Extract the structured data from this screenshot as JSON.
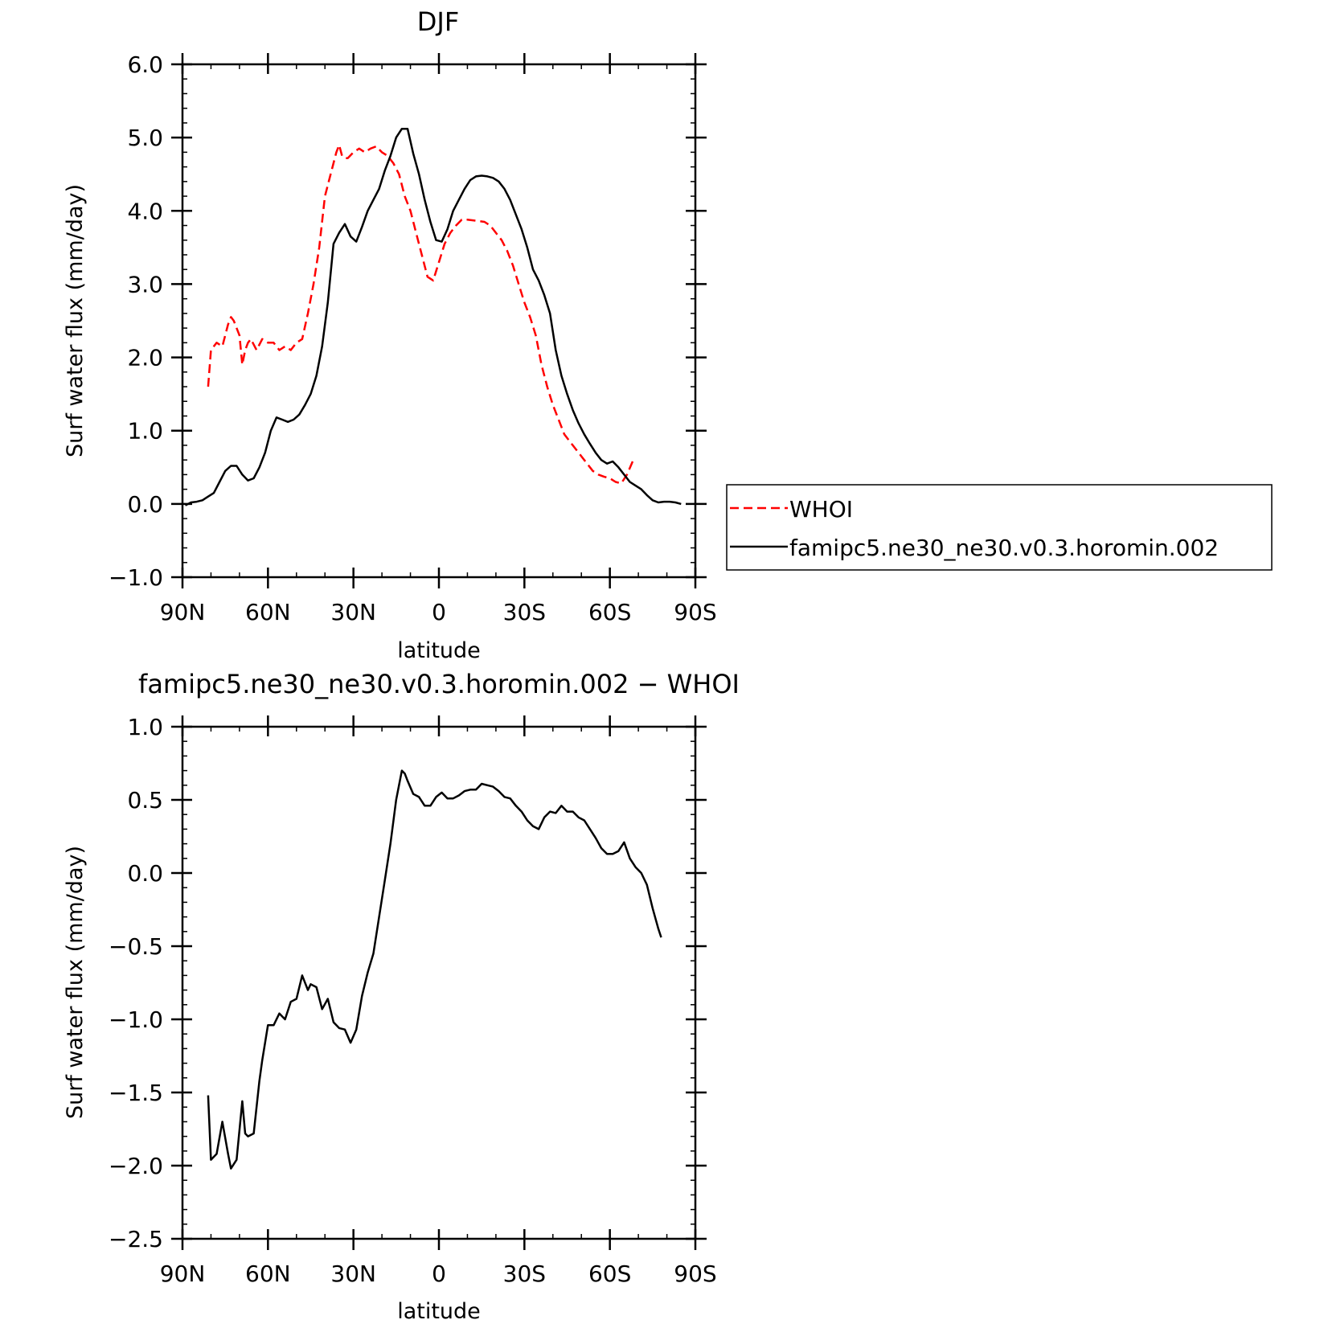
{
  "chart_data": [
    {
      "type": "line",
      "title": "DJF",
      "xlabel": "latitude",
      "ylabel": "Surf water flux (mm/day)",
      "xlim": [
        90,
        -90
      ],
      "ylim": [
        -1.0,
        6.0
      ],
      "x_ticks": [
        {
          "value": 90,
          "label": "90N"
        },
        {
          "value": 60,
          "label": "60N"
        },
        {
          "value": 30,
          "label": "30N"
        },
        {
          "value": 0,
          "label": "0"
        },
        {
          "value": -30,
          "label": "30S"
        },
        {
          "value": -60,
          "label": "60S"
        },
        {
          "value": -90,
          "label": "90S"
        }
      ],
      "y_ticks": [
        {
          "value": 6.0,
          "label": "6.0"
        },
        {
          "value": 5.0,
          "label": "5.0"
        },
        {
          "value": 4.0,
          "label": "4.0"
        },
        {
          "value": 3.0,
          "label": "3.0"
        },
        {
          "value": 2.0,
          "label": "2.0"
        },
        {
          "value": 1.0,
          "label": "1.0"
        },
        {
          "value": 0.0,
          "label": "0.0"
        },
        {
          "value": -1.0,
          "label": "−1.0"
        }
      ],
      "legend_position": "right",
      "series": [
        {
          "name": "WHOI",
          "color": "#ff0000",
          "style": "dashed",
          "x": [
            81,
            80,
            78,
            76,
            74,
            73,
            72,
            70,
            69,
            68,
            67,
            66,
            64,
            62,
            60,
            58,
            56,
            54,
            52,
            50,
            48,
            46,
            44,
            42,
            40,
            38,
            36,
            35,
            34,
            33,
            32,
            30,
            28,
            26,
            24,
            22,
            20,
            18,
            16,
            14,
            12,
            10,
            8,
            6,
            4,
            2,
            0,
            -2,
            -4,
            -6,
            -8,
            -10,
            -12,
            -14,
            -16,
            -18,
            -20,
            -22,
            -24,
            -26,
            -28,
            -30,
            -32,
            -34,
            -36,
            -38,
            -40,
            -42,
            -44,
            -46,
            -48,
            -50,
            -52,
            -54,
            -56,
            -58,
            -60,
            -62,
            -64,
            -66,
            -68,
            -70,
            -72,
            -74,
            -76,
            -78
          ],
          "y": [
            1.6,
            2.1,
            2.2,
            2.15,
            2.45,
            2.55,
            2.5,
            2.3,
            1.9,
            2.1,
            2.2,
            2.25,
            2.1,
            2.25,
            2.2,
            2.2,
            2.1,
            2.15,
            2.1,
            2.2,
            2.25,
            2.6,
            3.0,
            3.5,
            4.2,
            4.5,
            4.8,
            4.9,
            4.75,
            4.72,
            4.72,
            4.8,
            4.85,
            4.8,
            4.85,
            4.88,
            4.8,
            4.75,
            4.65,
            4.5,
            4.2,
            4.0,
            3.7,
            3.4,
            3.1,
            3.05,
            3.3,
            3.55,
            3.7,
            3.8,
            3.88,
            3.88,
            3.87,
            3.86,
            3.85,
            3.8,
            3.7,
            3.6,
            3.45,
            3.25,
            3.0,
            2.75,
            2.55,
            2.3,
            1.9,
            1.6,
            1.35,
            1.15,
            0.95,
            0.85,
            0.75,
            0.65,
            0.55,
            0.45,
            0.4,
            0.37,
            0.35,
            0.3,
            0.28,
            0.4,
            0.58,
            null,
            null,
            null,
            null,
            null
          ]
        },
        {
          "name": "famipc5.ne30_ne30.v0.3.horomin.002",
          "color": "#000000",
          "style": "solid",
          "x": [
            89,
            87,
            85,
            83,
            81,
            79,
            77,
            75,
            73,
            71,
            69,
            67,
            65,
            63,
            61,
            59,
            57,
            55,
            53,
            51,
            49,
            47,
            45,
            43,
            41,
            39,
            37,
            35,
            33,
            31,
            29,
            27,
            25,
            23,
            21,
            19,
            17,
            15,
            13,
            11,
            9,
            7,
            5,
            3,
            1,
            -1,
            -3,
            -5,
            -7,
            -9,
            -11,
            -13,
            -15,
            -17,
            -19,
            -21,
            -23,
            -25,
            -27,
            -29,
            -31,
            -33,
            -35,
            -37,
            -39,
            -41,
            -43,
            -45,
            -47,
            -49,
            -51,
            -53,
            -55,
            -57,
            -59,
            -61,
            -63,
            -65,
            -67,
            -69,
            -71,
            -73,
            -75,
            -77,
            -79,
            -81,
            -83,
            -85,
            -87,
            -89
          ],
          "y": [
            -0.02,
            0.02,
            0.03,
            0.05,
            0.1,
            0.15,
            0.3,
            0.45,
            0.52,
            0.52,
            0.4,
            0.32,
            0.35,
            0.5,
            0.7,
            1.0,
            1.18,
            1.15,
            1.12,
            1.15,
            1.22,
            1.35,
            1.5,
            1.75,
            2.15,
            2.75,
            3.55,
            3.7,
            3.82,
            3.65,
            3.58,
            3.78,
            4.0,
            4.15,
            4.3,
            4.55,
            4.75,
            5.0,
            5.12,
            5.12,
            4.78,
            4.5,
            4.15,
            3.85,
            3.6,
            3.58,
            3.75,
            4.0,
            4.15,
            4.3,
            4.42,
            4.47,
            4.48,
            4.47,
            4.45,
            4.4,
            4.3,
            4.15,
            3.95,
            3.75,
            3.5,
            3.2,
            3.05,
            2.85,
            2.6,
            2.1,
            1.75,
            1.5,
            1.28,
            1.1,
            0.95,
            0.82,
            0.7,
            0.6,
            0.55,
            0.58,
            0.5,
            0.4,
            0.3,
            0.25,
            0.2,
            0.12,
            0.05,
            0.02,
            0.03,
            0.03,
            0.02,
            0.0,
            null,
            null
          ]
        }
      ]
    },
    {
      "type": "line",
      "title": "famipc5.ne30_ne30.v0.3.horomin.002 − WHOI",
      "xlabel": "latitude",
      "ylabel": "Surf water flux (mm/day)",
      "xlim": [
        90,
        -90
      ],
      "ylim": [
        -2.5,
        1.0
      ],
      "x_ticks": [
        {
          "value": 90,
          "label": "90N"
        },
        {
          "value": 60,
          "label": "60N"
        },
        {
          "value": 30,
          "label": "30N"
        },
        {
          "value": 0,
          "label": "0"
        },
        {
          "value": -30,
          "label": "30S"
        },
        {
          "value": -60,
          "label": "60S"
        },
        {
          "value": -90,
          "label": "90S"
        }
      ],
      "y_ticks": [
        {
          "value": 1.0,
          "label": "1.0"
        },
        {
          "value": 0.5,
          "label": "0.5"
        },
        {
          "value": 0.0,
          "label": "0.0"
        },
        {
          "value": -0.5,
          "label": "−0.5"
        },
        {
          "value": -1.0,
          "label": "−1.0"
        },
        {
          "value": -1.5,
          "label": "−1.5"
        },
        {
          "value": -2.0,
          "label": "−2.0"
        },
        {
          "value": -2.5,
          "label": "−2.5"
        }
      ],
      "series": [
        {
          "name": "",
          "color": "#000000",
          "style": "solid",
          "x": [
            81,
            80,
            78,
            76,
            74,
            73,
            71,
            69,
            68,
            67,
            65,
            63,
            62,
            60,
            58,
            56,
            54,
            52,
            50,
            48,
            46,
            45,
            43,
            41,
            39,
            37,
            35,
            33,
            31,
            29,
            27,
            25,
            23,
            21,
            19,
            17,
            15,
            13,
            12,
            11,
            9,
            7,
            5,
            3,
            1,
            -1,
            -3,
            -5,
            -7,
            -9,
            -11,
            -13,
            -15,
            -17,
            -19,
            -21,
            -23,
            -25,
            -27,
            -29,
            -31,
            -33,
            -35,
            -37,
            -39,
            -41,
            -43,
            -45,
            -47,
            -49,
            -51,
            -53,
            -55,
            -57,
            -59,
            -61,
            -63,
            -65,
            -67,
            -69,
            -71,
            -73,
            -75,
            -77,
            -78
          ],
          "y": [
            -1.52,
            -1.96,
            -1.92,
            -1.7,
            -1.92,
            -2.02,
            -1.96,
            -1.56,
            -1.78,
            -1.8,
            -1.78,
            -1.42,
            -1.28,
            -1.04,
            -1.04,
            -0.96,
            -1.0,
            -0.88,
            -0.86,
            -0.7,
            -0.8,
            -0.76,
            -0.78,
            -0.93,
            -0.86,
            -1.02,
            -1.06,
            -1.07,
            -1.16,
            -1.07,
            -0.84,
            -0.68,
            -0.55,
            -0.3,
            -0.05,
            0.2,
            0.5,
            0.7,
            0.68,
            0.63,
            0.54,
            0.52,
            0.46,
            0.46,
            0.52,
            0.55,
            0.51,
            0.51,
            0.53,
            0.56,
            0.57,
            0.57,
            0.61,
            0.6,
            0.59,
            0.56,
            0.52,
            0.51,
            0.46,
            0.42,
            0.36,
            0.32,
            0.3,
            0.38,
            0.42,
            0.41,
            0.46,
            0.42,
            0.42,
            0.38,
            0.36,
            0.3,
            0.24,
            0.17,
            0.13,
            0.13,
            0.15,
            0.21,
            0.1,
            0.04,
            0.0,
            -0.08,
            -0.24,
            -0.38,
            -0.44
          ]
        }
      ]
    }
  ]
}
